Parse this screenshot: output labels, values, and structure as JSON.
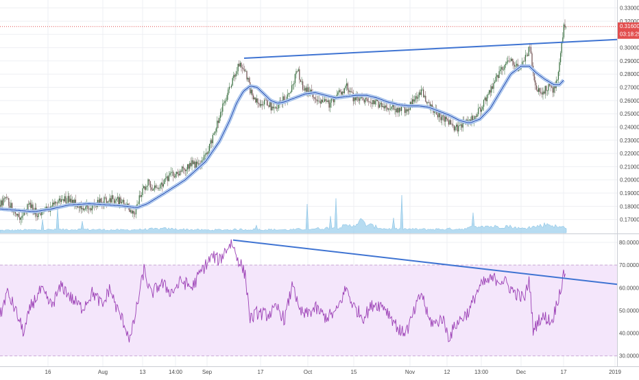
{
  "chart_data": [
    {
      "type": "candlestick",
      "panel": "price",
      "ylim": [
        0.16,
        0.335
      ],
      "y_ticks": [
        0.17,
        0.18,
        0.19,
        0.2,
        0.21,
        0.22,
        0.23,
        0.24,
        0.25,
        0.26,
        0.27,
        0.28,
        0.29,
        0.3,
        0.31,
        0.32,
        0.33
      ],
      "y_tick_labels": [
        "0.17000",
        "0.18000",
        "0.19000",
        "0.20000",
        "0.21000",
        "0.22000",
        "0.23000",
        "0.24000",
        "0.25000",
        "0.26000",
        "0.27000",
        "0.28000",
        "0.29000",
        "0.30000",
        "0.31000",
        "0.32000",
        "0.33000"
      ],
      "last_price": 0.316,
      "last_price_label": "0.31600",
      "countdown_label": "03:18:25",
      "price_key_points": [
        [
          0,
          0.181
        ],
        [
          8,
          0.186
        ],
        [
          20,
          0.177
        ],
        [
          32,
          0.171
        ],
        [
          42,
          0.181
        ],
        [
          55,
          0.174
        ],
        [
          70,
          0.178
        ],
        [
          85,
          0.184
        ],
        [
          100,
          0.186
        ],
        [
          115,
          0.181
        ],
        [
          130,
          0.178
        ],
        [
          145,
          0.183
        ],
        [
          160,
          0.186
        ],
        [
          175,
          0.184
        ],
        [
          185,
          0.18
        ],
        [
          195,
          0.173
        ],
        [
          205,
          0.189
        ],
        [
          215,
          0.199
        ],
        [
          225,
          0.193
        ],
        [
          235,
          0.197
        ],
        [
          250,
          0.203
        ],
        [
          265,
          0.207
        ],
        [
          280,
          0.213
        ],
        [
          290,
          0.211
        ],
        [
          300,
          0.218
        ],
        [
          310,
          0.232
        ],
        [
          320,
          0.248
        ],
        [
          330,
          0.262
        ],
        [
          340,
          0.277
        ],
        [
          350,
          0.288
        ],
        [
          356,
          0.284
        ],
        [
          360,
          0.278
        ],
        [
          368,
          0.262
        ],
        [
          378,
          0.258
        ],
        [
          388,
          0.261
        ],
        [
          398,
          0.252
        ],
        [
          408,
          0.258
        ],
        [
          418,
          0.263
        ],
        [
          428,
          0.272
        ],
        [
          433,
          0.285
        ],
        [
          440,
          0.272
        ],
        [
          450,
          0.267
        ],
        [
          460,
          0.262
        ],
        [
          470,
          0.26
        ],
        [
          480,
          0.257
        ],
        [
          490,
          0.264
        ],
        [
          500,
          0.268
        ],
        [
          505,
          0.272
        ],
        [
          515,
          0.262
        ],
        [
          525,
          0.261
        ],
        [
          540,
          0.259
        ],
        [
          555,
          0.257
        ],
        [
          570,
          0.255
        ],
        [
          585,
          0.253
        ],
        [
          595,
          0.254
        ],
        [
          605,
          0.261
        ],
        [
          615,
          0.268
        ],
        [
          625,
          0.257
        ],
        [
          635,
          0.251
        ],
        [
          645,
          0.247
        ],
        [
          655,
          0.244
        ],
        [
          665,
          0.239
        ],
        [
          675,
          0.242
        ],
        [
          685,
          0.244
        ],
        [
          695,
          0.249
        ],
        [
          705,
          0.258
        ],
        [
          715,
          0.266
        ],
        [
          725,
          0.278
        ],
        [
          735,
          0.286
        ],
        [
          745,
          0.292
        ],
        [
          755,
          0.285
        ],
        [
          765,
          0.29
        ],
        [
          773,
          0.3
        ],
        [
          780,
          0.269
        ],
        [
          788,
          0.266
        ],
        [
          798,
          0.27
        ],
        [
          808,
          0.268
        ],
        [
          815,
          0.283
        ],
        [
          820,
          0.305
        ],
        [
          823,
          0.318
        ],
        [
          826,
          0.316
        ]
      ],
      "ema_key_points": [
        [
          0,
          0.178
        ],
        [
          25,
          0.177
        ],
        [
          50,
          0.176
        ],
        [
          75,
          0.178
        ],
        [
          100,
          0.181
        ],
        [
          130,
          0.182
        ],
        [
          160,
          0.181
        ],
        [
          185,
          0.18
        ],
        [
          200,
          0.179
        ],
        [
          215,
          0.182
        ],
        [
          240,
          0.19
        ],
        [
          270,
          0.2
        ],
        [
          300,
          0.214
        ],
        [
          320,
          0.229
        ],
        [
          335,
          0.245
        ],
        [
          345,
          0.258
        ],
        [
          355,
          0.267
        ],
        [
          365,
          0.271
        ],
        [
          375,
          0.27
        ],
        [
          385,
          0.265
        ],
        [
          395,
          0.26
        ],
        [
          405,
          0.258
        ],
        [
          415,
          0.259
        ],
        [
          430,
          0.262
        ],
        [
          445,
          0.265
        ],
        [
          460,
          0.266
        ],
        [
          475,
          0.264
        ],
        [
          490,
          0.262
        ],
        [
          505,
          0.263
        ],
        [
          520,
          0.264
        ],
        [
          535,
          0.264
        ],
        [
          550,
          0.262
        ],
        [
          565,
          0.259
        ],
        [
          580,
          0.257
        ],
        [
          595,
          0.256
        ],
        [
          610,
          0.256
        ],
        [
          625,
          0.255
        ],
        [
          640,
          0.252
        ],
        [
          655,
          0.249
        ],
        [
          670,
          0.245
        ],
        [
          685,
          0.243
        ],
        [
          700,
          0.246
        ],
        [
          715,
          0.254
        ],
        [
          730,
          0.267
        ],
        [
          745,
          0.28
        ],
        [
          760,
          0.286
        ],
        [
          772,
          0.286
        ],
        [
          782,
          0.281
        ],
        [
          795,
          0.276
        ],
        [
          808,
          0.272
        ],
        [
          816,
          0.272
        ],
        [
          823,
          0.276
        ]
      ],
      "volume_key_points": [
        [
          0,
          0.18
        ],
        [
          60,
          0.22
        ],
        [
          120,
          0.25
        ],
        [
          180,
          0.2
        ],
        [
          240,
          0.3
        ],
        [
          300,
          0.2
        ],
        [
          360,
          0.25
        ],
        [
          420,
          0.22
        ],
        [
          480,
          0.35
        ],
        [
          515,
          0.55
        ],
        [
          525,
          0.9
        ],
        [
          535,
          0.6
        ],
        [
          560,
          0.3
        ],
        [
          620,
          0.25
        ],
        [
          680,
          0.3
        ],
        [
          700,
          0.55
        ],
        [
          720,
          0.45
        ],
        [
          740,
          0.5
        ],
        [
          760,
          0.3
        ],
        [
          780,
          0.45
        ],
        [
          800,
          0.65
        ],
        [
          815,
          0.4
        ],
        [
          826,
          0.45
        ]
      ],
      "trendline": {
        "from": [
          356,
          0.292
        ],
        "to": [
          932,
          0.307
        ]
      }
    },
    {
      "type": "line",
      "panel": "rsi",
      "ylim": [
        26,
        83
      ],
      "y_ticks": [
        30,
        40,
        50,
        60,
        70,
        80
      ],
      "y_tick_labels": [
        "30.0000",
        "40.0000",
        "50.0000",
        "60.0000",
        "70.0000",
        "80.0000"
      ],
      "band": [
        30,
        70
      ],
      "rsi_key_points": [
        [
          0,
          47
        ],
        [
          10,
          58
        ],
        [
          20,
          52
        ],
        [
          35,
          40
        ],
        [
          45,
          52
        ],
        [
          60,
          59
        ],
        [
          75,
          52
        ],
        [
          90,
          61
        ],
        [
          105,
          55
        ],
        [
          120,
          51
        ],
        [
          135,
          58
        ],
        [
          150,
          52
        ],
        [
          160,
          60
        ],
        [
          170,
          51
        ],
        [
          180,
          45
        ],
        [
          190,
          37
        ],
        [
          200,
          52
        ],
        [
          210,
          68
        ],
        [
          220,
          57
        ],
        [
          235,
          62
        ],
        [
          250,
          58
        ],
        [
          265,
          63
        ],
        [
          280,
          60
        ],
        [
          295,
          68
        ],
        [
          310,
          74
        ],
        [
          320,
          72
        ],
        [
          330,
          77
        ],
        [
          338,
          80
        ],
        [
          345,
          74
        ],
        [
          352,
          70
        ],
        [
          358,
          65
        ],
        [
          365,
          46
        ],
        [
          375,
          49
        ],
        [
          390,
          48
        ],
        [
          405,
          51
        ],
        [
          415,
          46
        ],
        [
          428,
          63
        ],
        [
          435,
          50
        ],
        [
          445,
          48
        ],
        [
          460,
          51
        ],
        [
          475,
          47
        ],
        [
          490,
          49
        ],
        [
          505,
          60
        ],
        [
          515,
          52
        ],
        [
          530,
          47
        ],
        [
          545,
          53
        ],
        [
          560,
          52
        ],
        [
          575,
          45
        ],
        [
          585,
          40
        ],
        [
          595,
          42
        ],
        [
          605,
          50
        ],
        [
          615,
          58
        ],
        [
          625,
          46
        ],
        [
          635,
          44
        ],
        [
          645,
          47
        ],
        [
          655,
          38
        ],
        [
          665,
          44
        ],
        [
          675,
          47
        ],
        [
          685,
          50
        ],
        [
          695,
          58
        ],
        [
          705,
          62
        ],
        [
          720,
          64
        ],
        [
          735,
          63
        ],
        [
          750,
          58
        ],
        [
          765,
          55
        ],
        [
          772,
          64
        ],
        [
          778,
          40
        ],
        [
          785,
          46
        ],
        [
          795,
          47
        ],
        [
          805,
          45
        ],
        [
          812,
          53
        ],
        [
          818,
          60
        ],
        [
          822,
          65
        ],
        [
          825,
          68.5
        ]
      ],
      "trendline": {
        "from": [
          340,
          81
        ],
        "to": [
          900,
          61.5
        ]
      }
    }
  ],
  "x_axis": {
    "ticks": [
      {
        "label": "16",
        "x": 70
      },
      {
        "label": "Aug",
        "x": 150
      },
      {
        "label": "13",
        "x": 208
      },
      {
        "label": "14:00",
        "x": 256
      },
      {
        "label": "Sep",
        "x": 302
      },
      {
        "label": "17",
        "x": 380
      },
      {
        "label": "Oct",
        "x": 449
      },
      {
        "label": "15",
        "x": 516
      },
      {
        "label": "Nov",
        "x": 598
      },
      {
        "label": "12",
        "x": 652
      },
      {
        "label": "13:00",
        "x": 702
      },
      {
        "label": "Dec",
        "x": 760
      },
      {
        "label": "17",
        "x": 822
      },
      {
        "label": "2019",
        "x": 897
      }
    ]
  },
  "colors": {
    "up_candle": "#336a3a",
    "down_candle": "#6b4a4a",
    "ema": "#1446b4",
    "ema_halo": "#8fb3e6",
    "trendline": "#3e73d2",
    "volume": "#9fd0ec",
    "rsi_line": "#9b3fb5",
    "rsi_band": "#f4e6fb",
    "price_label": "#e24e4e",
    "grid": "#eeeff3"
  }
}
